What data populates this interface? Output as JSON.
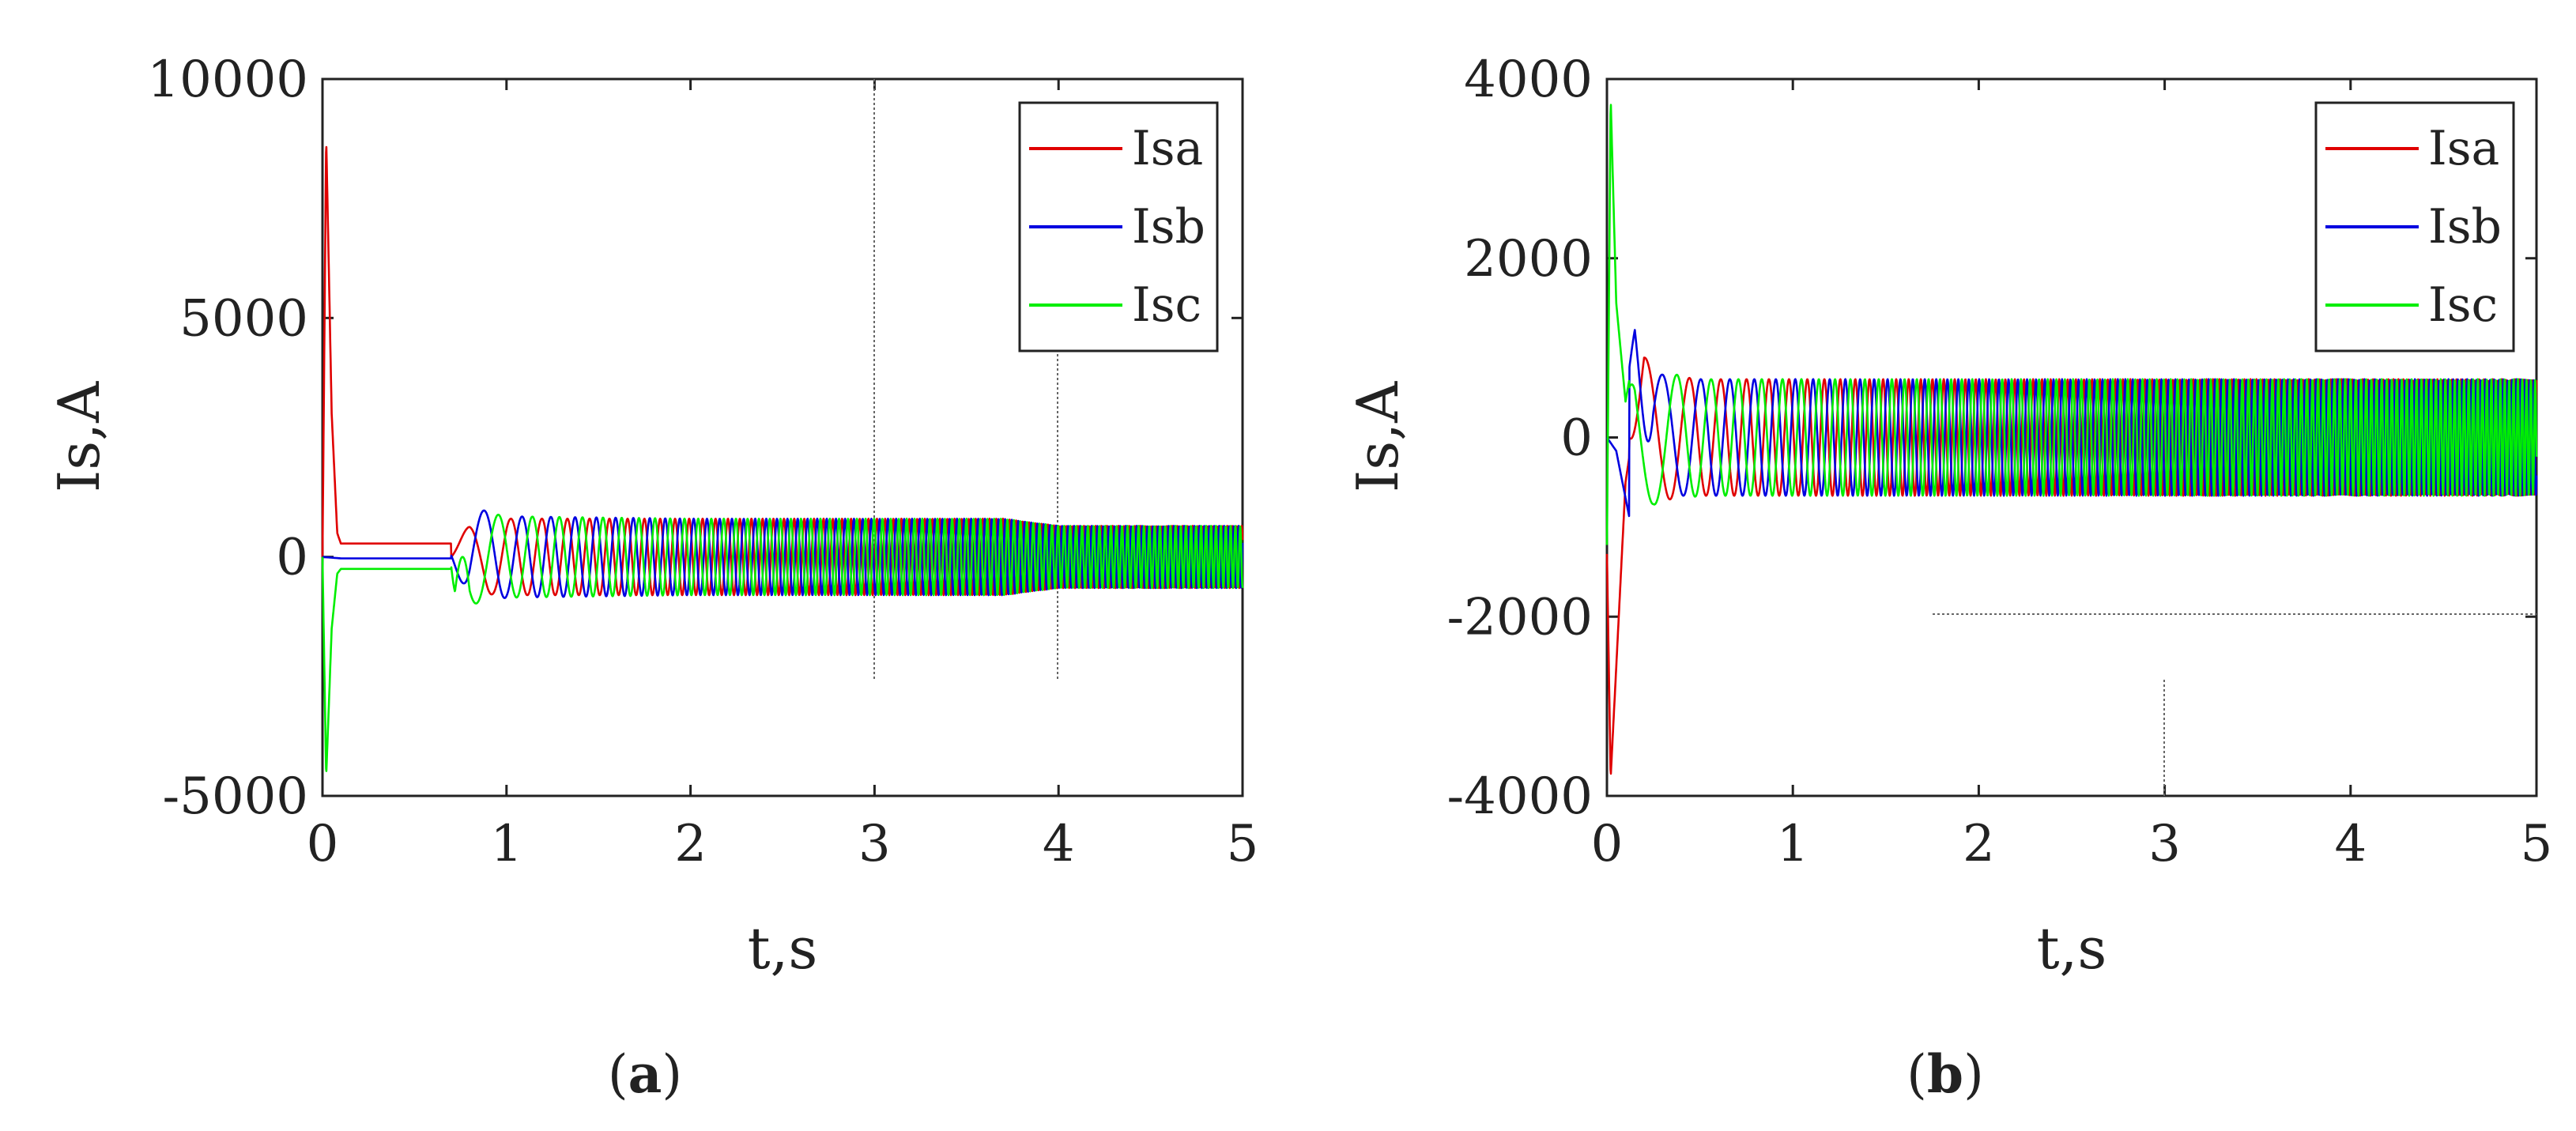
{
  "chart_data": [
    {
      "type": "line",
      "panel_label": "a",
      "xlabel": "t,s",
      "ylabel": "Is,A",
      "xlim": [
        0,
        5
      ],
      "ylim": [
        -5000,
        10000
      ],
      "xticks": [
        "0",
        "1",
        "2",
        "3",
        "4",
        "5"
      ],
      "yticks": [
        "-5000",
        "0",
        "5000",
        "10000"
      ],
      "legend_position": "top-right",
      "series": [
        {
          "name": "Isa",
          "color": "#e00000",
          "x": [
            0,
            0.02,
            0.05,
            0.08,
            0.1,
            0.7,
            0.8,
            0.9,
            1.0,
            1.5,
            2.0,
            3.0,
            3.7,
            4.0,
            5.0
          ],
          "y": [
            0,
            8800,
            3000,
            500,
            280,
            280,
            650,
            780,
            800,
            800,
            800,
            800,
            800,
            650,
            650
          ]
        },
        {
          "name": "Isb",
          "color": "#0000e0",
          "x": [
            0,
            0.1,
            0.7,
            0.8,
            1.0,
            2.0,
            3.0,
            3.7,
            4.0,
            5.0
          ],
          "y": [
            0,
            -30,
            -30,
            1050,
            850,
            800,
            800,
            800,
            650,
            650
          ]
        },
        {
          "name": "Isc",
          "color": "#00ee00",
          "x": [
            0,
            0.02,
            0.05,
            0.08,
            0.1,
            0.7,
            0.72,
            0.8,
            1.0,
            2.0,
            3.0,
            3.7,
            4.0,
            5.0
          ],
          "y": [
            0,
            -4600,
            -1500,
            -350,
            -250,
            -250,
            -1100,
            1000,
            850,
            800,
            800,
            800,
            650,
            650
          ]
        }
      ]
    },
    {
      "type": "line",
      "panel_label": "b",
      "xlabel": "t,s",
      "ylabel": "Is,A",
      "xlim": [
        0,
        5
      ],
      "ylim": [
        -4000,
        4000
      ],
      "xticks": [
        "0",
        "1",
        "2",
        "3",
        "4",
        "5"
      ],
      "yticks": [
        "-4000",
        "-2000",
        "0",
        "2000",
        "4000"
      ],
      "legend_position": "top-right",
      "series": [
        {
          "name": "Isa",
          "color": "#e00000",
          "x": [
            0,
            0.02,
            0.1,
            0.2,
            0.3,
            0.5,
            1.0,
            5.0
          ],
          "y": [
            -1300,
            -3800,
            -500,
            900,
            700,
            650,
            650,
            650
          ]
        },
        {
          "name": "Isb",
          "color": "#0000e0",
          "x": [
            0,
            0.05,
            0.15,
            0.25,
            0.35,
            0.5,
            1.0,
            5.0
          ],
          "y": [
            0,
            -150,
            -1200,
            750,
            650,
            650,
            650,
            650
          ]
        },
        {
          "name": "Isc",
          "color": "#00ee00",
          "x": [
            0,
            0.02,
            0.05,
            0.1,
            0.15,
            0.25,
            0.5,
            1.0,
            5.0
          ],
          "y": [
            -1200,
            3800,
            1500,
            400,
            1000,
            750,
            650,
            650,
            650
          ]
        }
      ]
    }
  ]
}
